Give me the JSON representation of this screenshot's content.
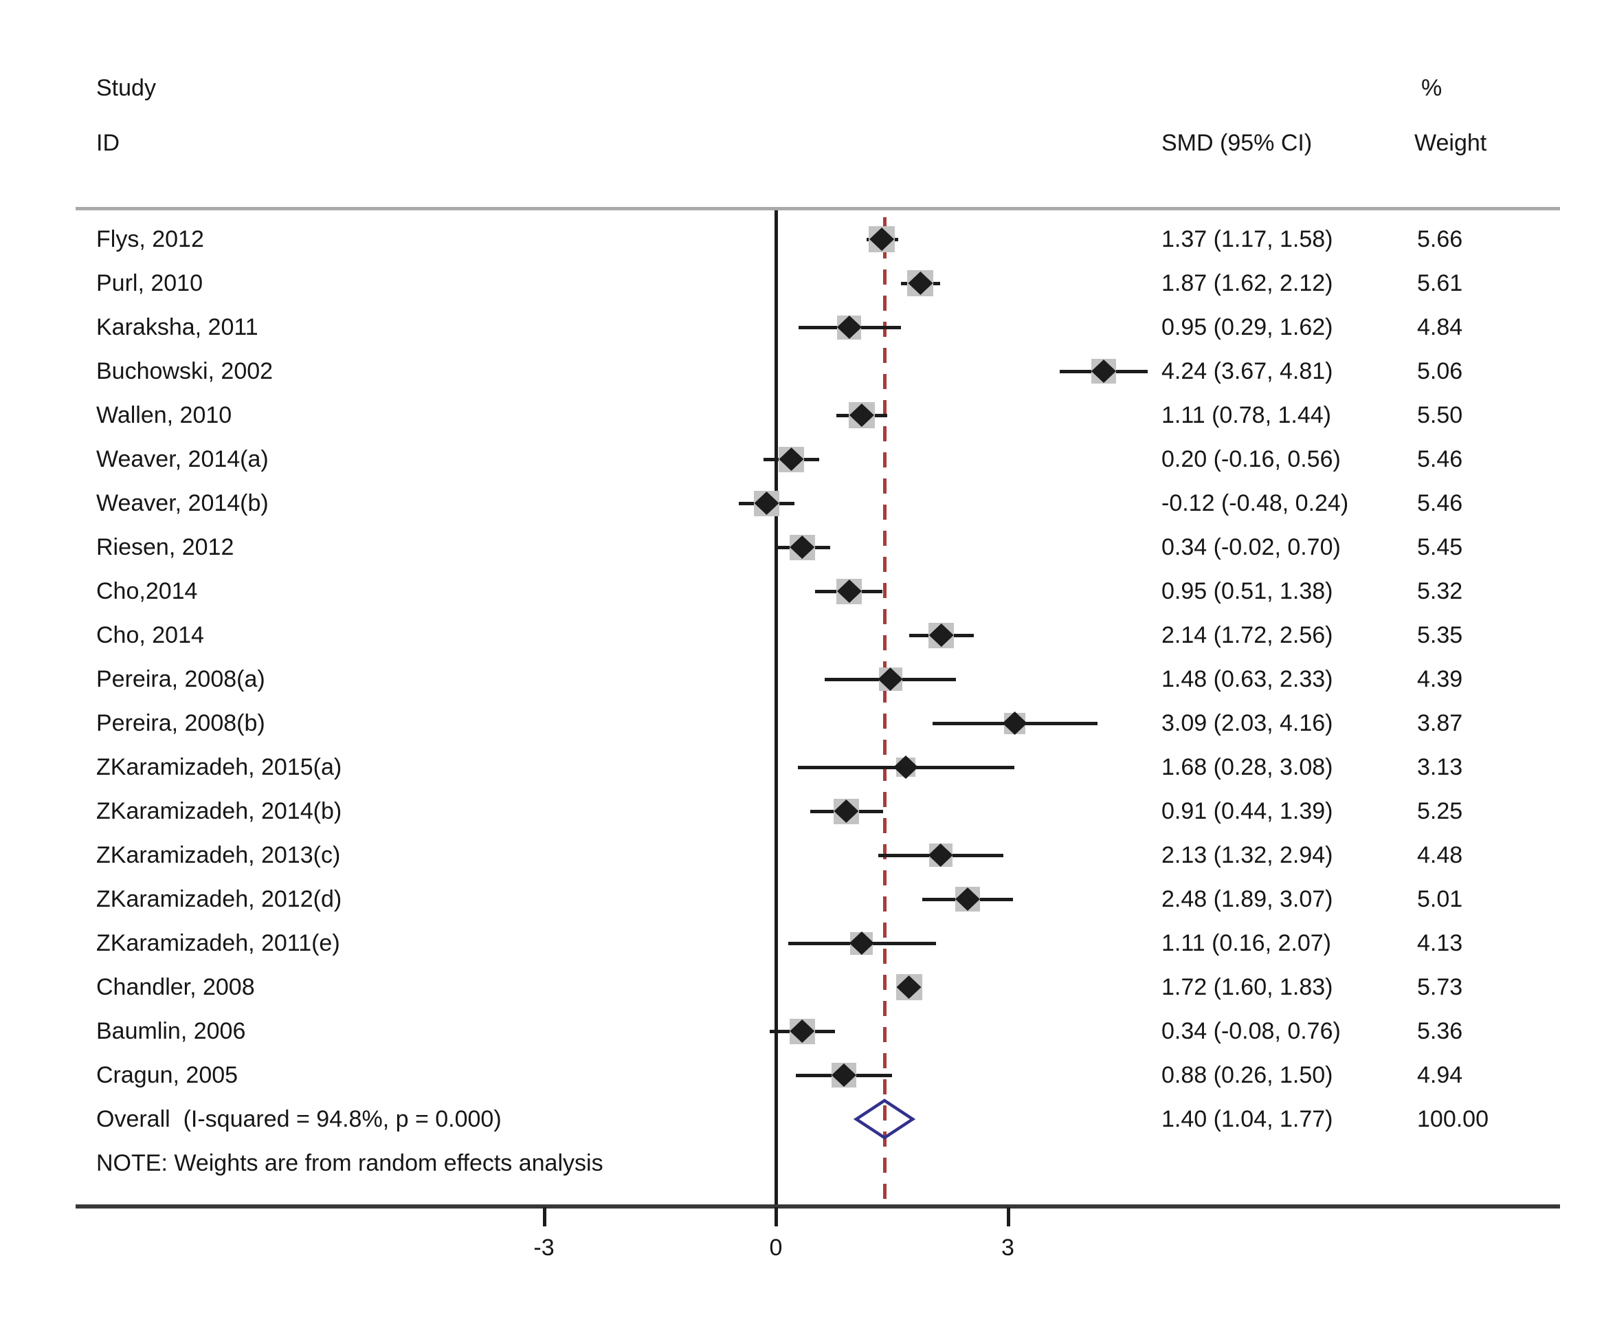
{
  "header": {
    "study_line1": "Study",
    "study_line2": "ID",
    "smd_header": "SMD (95% CI)",
    "pct_header": "%",
    "weight_header": "Weight"
  },
  "note": "NOTE: Weights are from random effects analysis",
  "colors": {
    "dashed_overall_line": "#a83c3c",
    "overall_diamond_outline": "#32328c",
    "weight_box": "#c3c3c3",
    "marker_and_ci": "#1c1c1c",
    "header_rule": "#a9a9a9",
    "bottom_rule": "#383838",
    "axis_line": "#1c1c1c"
  },
  "chart_data": {
    "type": "forest",
    "effect_measure": "SMD",
    "axis_ticks": [
      {
        "label": "-3",
        "value": -3
      },
      {
        "label": "0",
        "value": 0
      },
      {
        "label": "3",
        "value": 3
      }
    ],
    "null_line_value": 0,
    "overall_dashed_line_value": 1.4,
    "studies": [
      {
        "id": "Flys, 2012",
        "smd": 1.37,
        "ci_low": 1.17,
        "ci_high": 1.58,
        "weight": 5.66,
        "smd_label": "1.37 (1.17, 1.58)",
        "weight_label": "5.66"
      },
      {
        "id": "Purl, 2010",
        "smd": 1.87,
        "ci_low": 1.62,
        "ci_high": 2.12,
        "weight": 5.61,
        "smd_label": "1.87 (1.62, 2.12)",
        "weight_label": "5.61"
      },
      {
        "id": "Karaksha, 2011",
        "smd": 0.95,
        "ci_low": 0.29,
        "ci_high": 1.62,
        "weight": 4.84,
        "smd_label": "0.95 (0.29, 1.62)",
        "weight_label": "4.84"
      },
      {
        "id": "Buchowski, 2002",
        "smd": 4.24,
        "ci_low": 3.67,
        "ci_high": 4.81,
        "weight": 5.06,
        "smd_label": "4.24 (3.67, 4.81)",
        "weight_label": "5.06"
      },
      {
        "id": "Wallen, 2010",
        "smd": 1.11,
        "ci_low": 0.78,
        "ci_high": 1.44,
        "weight": 5.5,
        "smd_label": "1.11 (0.78, 1.44)",
        "weight_label": "5.50"
      },
      {
        "id": "Weaver, 2014(a)",
        "smd": 0.2,
        "ci_low": -0.16,
        "ci_high": 0.56,
        "weight": 5.46,
        "smd_label": "0.20 (-0.16, 0.56)",
        "weight_label": "5.46"
      },
      {
        "id": "Weaver, 2014(b)",
        "smd": -0.12,
        "ci_low": -0.48,
        "ci_high": 0.24,
        "weight": 5.46,
        "smd_label": "-0.12 (-0.48, 0.24)",
        "weight_label": "5.46"
      },
      {
        "id": "Riesen, 2012",
        "smd": 0.34,
        "ci_low": -0.02,
        "ci_high": 0.7,
        "weight": 5.45,
        "smd_label": "0.34 (-0.02, 0.70)",
        "weight_label": "5.45"
      },
      {
        "id": "Cho,2014",
        "smd": 0.95,
        "ci_low": 0.51,
        "ci_high": 1.38,
        "weight": 5.32,
        "smd_label": "0.95 (0.51, 1.38)",
        "weight_label": "5.32"
      },
      {
        "id": "Cho, 2014",
        "smd": 2.14,
        "ci_low": 1.72,
        "ci_high": 2.56,
        "weight": 5.35,
        "smd_label": "2.14 (1.72, 2.56)",
        "weight_label": "5.35"
      },
      {
        "id": "Pereira, 2008(a)",
        "smd": 1.48,
        "ci_low": 0.63,
        "ci_high": 2.33,
        "weight": 4.39,
        "smd_label": "1.48 (0.63, 2.33)",
        "weight_label": "4.39"
      },
      {
        "id": "Pereira, 2008(b)",
        "smd": 3.09,
        "ci_low": 2.03,
        "ci_high": 4.16,
        "weight": 3.87,
        "smd_label": "3.09 (2.03, 4.16)",
        "weight_label": "3.87"
      },
      {
        "id": "ZKaramizadeh, 2015(a)",
        "smd": 1.68,
        "ci_low": 0.28,
        "ci_high": 3.08,
        "weight": 3.13,
        "smd_label": "1.68 (0.28, 3.08)",
        "weight_label": "3.13"
      },
      {
        "id": "ZKaramizadeh, 2014(b)",
        "smd": 0.91,
        "ci_low": 0.44,
        "ci_high": 1.39,
        "weight": 5.25,
        "smd_label": "0.91 (0.44, 1.39)",
        "weight_label": "5.25"
      },
      {
        "id": "ZKaramizadeh, 2013(c)",
        "smd": 2.13,
        "ci_low": 1.32,
        "ci_high": 2.94,
        "weight": 4.48,
        "smd_label": "2.13 (1.32, 2.94)",
        "weight_label": "4.48"
      },
      {
        "id": "ZKaramizadeh, 2012(d)",
        "smd": 2.48,
        "ci_low": 1.89,
        "ci_high": 3.07,
        "weight": 5.01,
        "smd_label": "2.48 (1.89, 3.07)",
        "weight_label": "5.01"
      },
      {
        "id": "ZKaramizadeh, 2011(e)",
        "smd": 1.11,
        "ci_low": 0.16,
        "ci_high": 2.07,
        "weight": 4.13,
        "smd_label": "1.11 (0.16, 2.07)",
        "weight_label": "4.13"
      },
      {
        "id": "Chandler, 2008",
        "smd": 1.72,
        "ci_low": 1.6,
        "ci_high": 1.83,
        "weight": 5.73,
        "smd_label": "1.72 (1.60, 1.83)",
        "weight_label": "5.73"
      },
      {
        "id": "Baumlin, 2006",
        "smd": 0.34,
        "ci_low": -0.08,
        "ci_high": 0.76,
        "weight": 5.36,
        "smd_label": "0.34 (-0.08, 0.76)",
        "weight_label": "5.36"
      },
      {
        "id": "Cragun, 2005",
        "smd": 0.88,
        "ci_low": 0.26,
        "ci_high": 1.5,
        "weight": 4.94,
        "smd_label": "0.88 (0.26, 1.50)",
        "weight_label": "4.94"
      }
    ],
    "overall": {
      "id": "Overall  (I-squared = 94.8%, p = 0.000)",
      "smd": 1.4,
      "ci_low": 1.04,
      "ci_high": 1.77,
      "weight": 100.0,
      "smd_label": "1.40 (1.04, 1.77)",
      "weight_label": "100.00"
    }
  }
}
